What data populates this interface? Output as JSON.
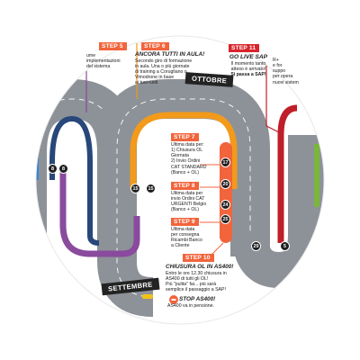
{
  "colors": {
    "track": "#8d9298",
    "blue_lane": "#28477a",
    "purple_lane": "#8a4a9d",
    "orange_lane": "#f39a1a",
    "red_lane": "#c01e2a",
    "light_blue_lane": "#3a86d1",
    "green_lane": "#7ab63c",
    "step_tag": "#f2643c",
    "step_tag_red": "#d9242b"
  },
  "steps": {
    "step5": {
      "tag": "STEP 5",
      "line1": "ume",
      "line2": "implementazioni",
      "line3": "del sistema"
    },
    "step6": {
      "tag": "STEP 6",
      "heading": "ANCORA TUTTI IN AULA!",
      "line1": "Secondo giro di formazione",
      "line2": "in aula. Una o più giornate",
      "line3": "di training a Corugliano o",
      "line4": "Vimodrone in base",
      "line5": "ai tuoi ruoli"
    },
    "step11": {
      "tag": "STEP 11",
      "heading": "GO LIVE SAP",
      "line1": "Il momento tanto",
      "line2": "atteso è arrivato!",
      "line3": "Si passa a SAP!"
    },
    "right_edge": {
      "line1": "R+",
      "line2": "e for",
      "line3": "suppo",
      "line4": "per opera",
      "line5": "nuovi sistem"
    },
    "step7": {
      "tag": "STEP 7",
      "line1": "Ultima data per:",
      "line2": "1) Chiusura OL",
      "line3": "Giornata",
      "line4": "2) Invio Ordini",
      "line5": "CAT STANDARD",
      "line6": "(Banco + OL)"
    },
    "step8": {
      "tag": "STEP 8",
      "line1": "Ultima data per",
      "line2": "invio Ordini CAT",
      "line3": "URGENTI Belgio",
      "line4": "(Banco + OL)"
    },
    "step9": {
      "tag": "STEP 9",
      "line1": "Ultima data",
      "line2": "per consegna",
      "line3": "Ricambi Banco",
      "line4": "a Cliente"
    },
    "step10": {
      "tag": "STEP 10",
      "heading": "CHIUSURA OL IN AS400!",
      "line1": "Entro le ore 12.30 chiusura in",
      "line2": "AS400 di tutti gli OL!",
      "line3": "Più \"pulita\" fai... più sarà",
      "line4": "semplice il passaggio a SAP!"
    },
    "stop": {
      "heading": "STOP AS400!",
      "line1": "AS400 va in pensione."
    }
  },
  "months": {
    "october": "OTTOBRE",
    "september": "SETTEMBRE"
  },
  "badges": {
    "b8a": "8",
    "b8b": "8",
    "b15a": "15",
    "b15b": "15",
    "b17": "17",
    "b20": "20",
    "b24": "24",
    "b25": "25",
    "b29": "29",
    "b5": "5"
  }
}
